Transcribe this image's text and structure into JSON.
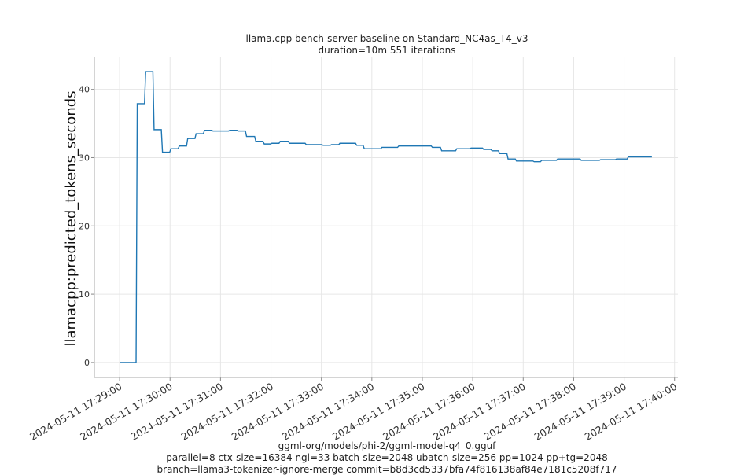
{
  "chart_data": {
    "type": "line",
    "title": "llama.cpp bench-server-baseline on Standard_NC4as_T4_v3",
    "subtitle": "duration=10m 551 iterations",
    "ylabel": "llamacpp:predicted_tokens_seconds",
    "xlabel": "",
    "footer": [
      "ggml-org/models/phi-2/ggml-model-q4_0.gguf",
      "parallel=8 ctx-size=16384 ngl=33 batch-size=2048 ubatch-size=256 pp=1024 pp+tg=2048",
      "branch=llama3-tokenizer-ignore-merge commit=b8d3cd5337bfa74f816138af84e7181c5208f717"
    ],
    "x_date": "2024-05-11",
    "xlim": [
      "17:28:30",
      "17:40:04"
    ],
    "ylim": [
      -2.2,
      44.8
    ],
    "yticks": [
      0,
      10,
      20,
      30,
      40
    ],
    "xticks": [
      "2024-05-11 17:29:00",
      "2024-05-11 17:30:00",
      "2024-05-11 17:31:00",
      "2024-05-11 17:32:00",
      "2024-05-11 17:33:00",
      "2024-05-11 17:34:00",
      "2024-05-11 17:35:00",
      "2024-05-11 17:36:00",
      "2024-05-11 17:37:00",
      "2024-05-11 17:38:00",
      "2024-05-11 17:39:00",
      "2024-05-11 17:40:00"
    ],
    "grid": true,
    "line_color": "#1f77b4",
    "series": [
      {
        "x": [
          "17:29:00",
          "17:29:21",
          "17:29:31",
          "17:29:41",
          "17:29:51",
          "17:30:01",
          "17:30:11",
          "17:30:21",
          "17:30:31",
          "17:30:41",
          "17:30:51",
          "17:31:11",
          "17:31:21",
          "17:31:31",
          "17:31:42",
          "17:31:52",
          "17:32:01",
          "17:32:11",
          "17:32:22",
          "17:32:42",
          "17:33:02",
          "17:33:12",
          "17:33:22",
          "17:33:42",
          "17:33:51",
          "17:34:12",
          "17:34:32",
          "17:35:12",
          "17:35:23",
          "17:35:41",
          "17:35:58",
          "17:36:13",
          "17:36:23",
          "17:36:32",
          "17:36:42",
          "17:36:52",
          "17:37:13",
          "17:37:22",
          "17:37:41",
          "17:38:09",
          "17:38:32",
          "17:38:51",
          "17:39:05",
          "17:39:33"
        ],
        "y": [
          0,
          37.9,
          42.6,
          34.1,
          30.8,
          31.3,
          31.7,
          32.8,
          33.5,
          34.0,
          33.9,
          34.0,
          33.9,
          33.1,
          32.4,
          32.0,
          32.1,
          32.4,
          32.1,
          31.9,
          31.8,
          31.9,
          32.1,
          31.8,
          31.3,
          31.5,
          31.7,
          31.5,
          31.0,
          31.3,
          31.4,
          31.2,
          31.0,
          30.6,
          29.8,
          29.5,
          29.4,
          29.6,
          29.8,
          29.6,
          29.7,
          29.8,
          30.1,
          30.1
        ]
      }
    ]
  }
}
